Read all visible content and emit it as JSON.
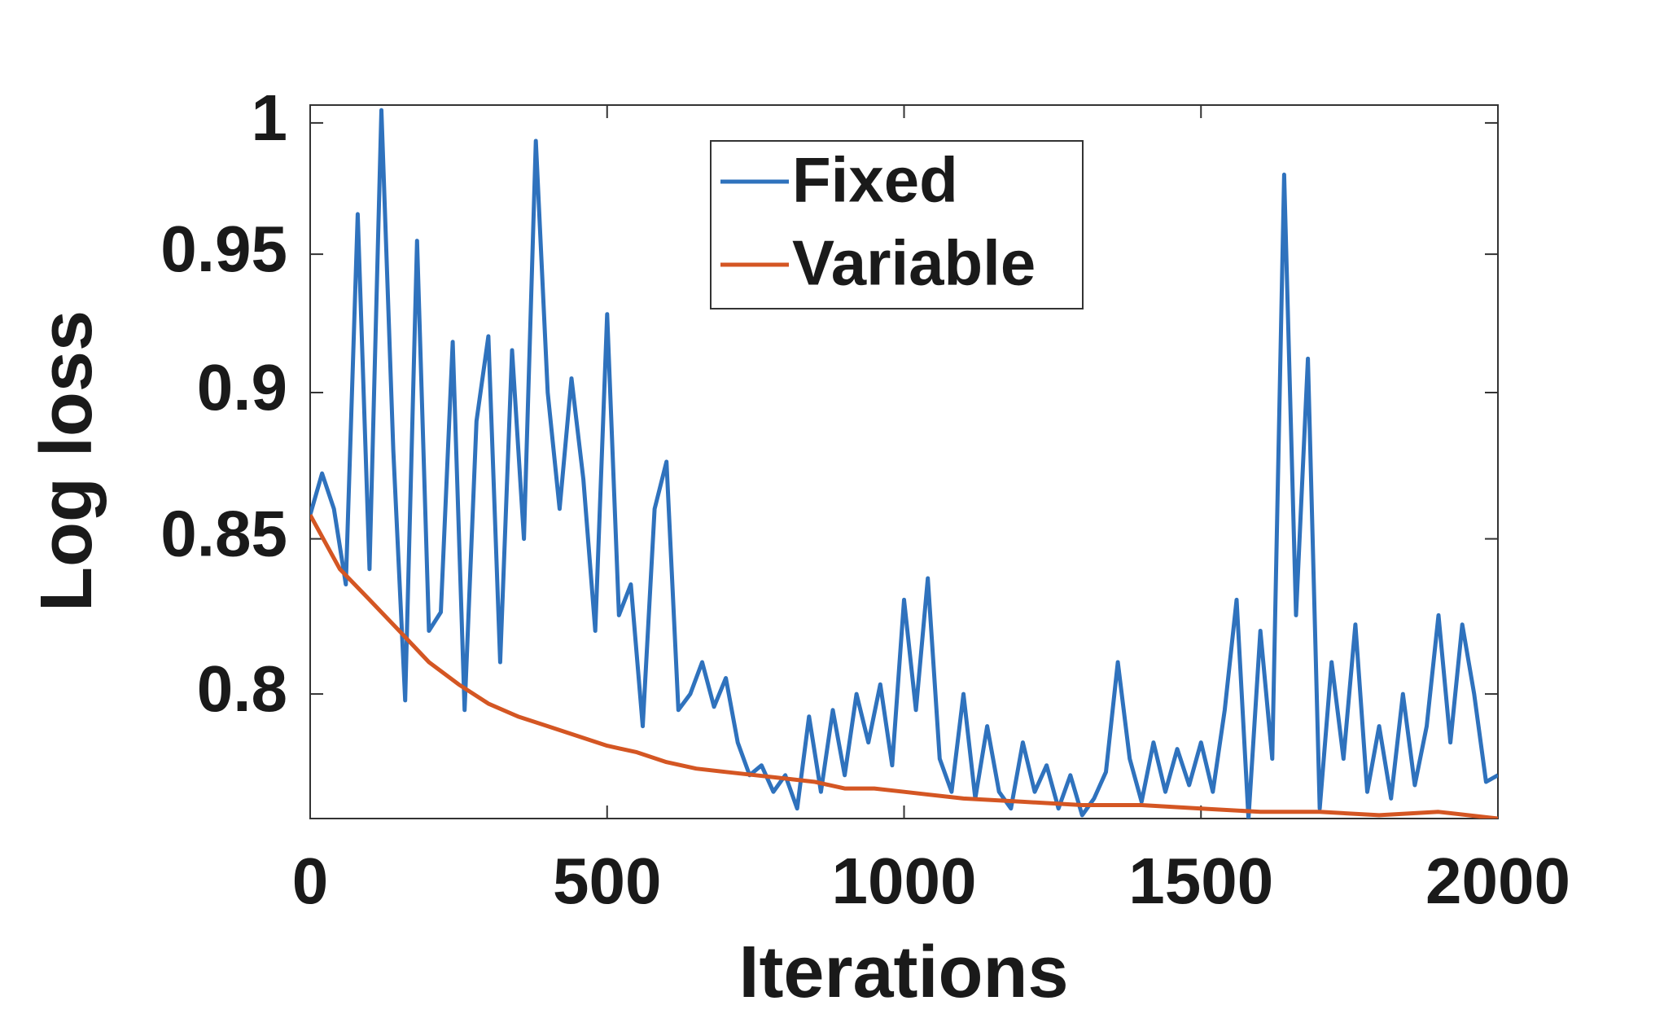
{
  "chart_data": {
    "type": "line",
    "xlabel": "Iterations",
    "ylabel": "Log loss",
    "xlim": [
      0,
      2000
    ],
    "xticks": [
      0,
      500,
      1000,
      1500,
      2000
    ],
    "ylim": [
      0.762,
      1.007
    ],
    "yticks": [
      0.8,
      0.85,
      0.9,
      0.95,
      1
    ],
    "yscale": "log",
    "legend": "top-center",
    "grid": false,
    "series": [
      {
        "name": "Fixed",
        "color": "#2f72bd",
        "x": [
          0,
          20,
          40,
          60,
          80,
          100,
          120,
          140,
          160,
          180,
          200,
          220,
          240,
          260,
          280,
          300,
          320,
          340,
          360,
          380,
          400,
          420,
          440,
          460,
          480,
          500,
          520,
          540,
          560,
          580,
          600,
          620,
          640,
          660,
          680,
          700,
          720,
          740,
          760,
          780,
          800,
          820,
          840,
          860,
          880,
          900,
          920,
          940,
          960,
          980,
          1000,
          1020,
          1040,
          1060,
          1080,
          1100,
          1120,
          1140,
          1160,
          1180,
          1200,
          1220,
          1240,
          1260,
          1280,
          1300,
          1320,
          1340,
          1360,
          1380,
          1400,
          1420,
          1440,
          1460,
          1480,
          1500,
          1520,
          1540,
          1560,
          1580,
          1600,
          1620,
          1640,
          1660,
          1680,
          1700,
          1720,
          1740,
          1760,
          1780,
          1800,
          1820,
          1840,
          1860,
          1880,
          1900,
          1920,
          1940,
          1960,
          1980,
          2000
        ],
        "values": [
          0.858,
          0.872,
          0.86,
          0.835,
          0.965,
          0.84,
          1.005,
          0.88,
          0.798,
          0.955,
          0.82,
          0.826,
          0.918,
          0.795,
          0.89,
          0.92,
          0.81,
          0.915,
          0.85,
          0.993,
          0.9,
          0.86,
          0.905,
          0.87,
          0.82,
          0.928,
          0.825,
          0.835,
          0.79,
          0.86,
          0.876,
          0.795,
          0.8,
          0.81,
          0.796,
          0.805,
          0.785,
          0.775,
          0.778,
          0.77,
          0.775,
          0.765,
          0.793,
          0.77,
          0.795,
          0.775,
          0.8,
          0.785,
          0.803,
          0.778,
          0.83,
          0.795,
          0.837,
          0.78,
          0.77,
          0.8,
          0.768,
          0.79,
          0.77,
          0.765,
          0.785,
          0.77,
          0.778,
          0.765,
          0.775,
          0.763,
          0.768,
          0.776,
          0.81,
          0.78,
          0.767,
          0.785,
          0.77,
          0.783,
          0.772,
          0.785,
          0.77,
          0.795,
          0.83,
          0.762,
          0.82,
          0.78,
          0.98,
          0.825,
          0.912,
          0.765,
          0.81,
          0.78,
          0.822,
          0.77,
          0.79,
          0.768,
          0.8,
          0.772,
          0.79,
          0.825,
          0.785,
          0.822,
          0.8,
          0.773,
          0.775
        ]
      },
      {
        "name": "Variable",
        "color": "#d45623",
        "x": [
          0,
          50,
          100,
          150,
          200,
          250,
          300,
          350,
          400,
          450,
          500,
          550,
          600,
          650,
          700,
          750,
          800,
          850,
          900,
          950,
          1000,
          1100,
          1200,
          1300,
          1400,
          1500,
          1600,
          1700,
          1800,
          1900,
          2000
        ],
        "values": [
          0.858,
          0.84,
          0.83,
          0.82,
          0.81,
          0.803,
          0.797,
          0.793,
          0.79,
          0.787,
          0.784,
          0.782,
          0.779,
          0.777,
          0.776,
          0.775,
          0.774,
          0.773,
          0.771,
          0.771,
          0.77,
          0.768,
          0.767,
          0.766,
          0.766,
          0.765,
          0.764,
          0.764,
          0.763,
          0.764,
          0.762
        ]
      }
    ]
  }
}
